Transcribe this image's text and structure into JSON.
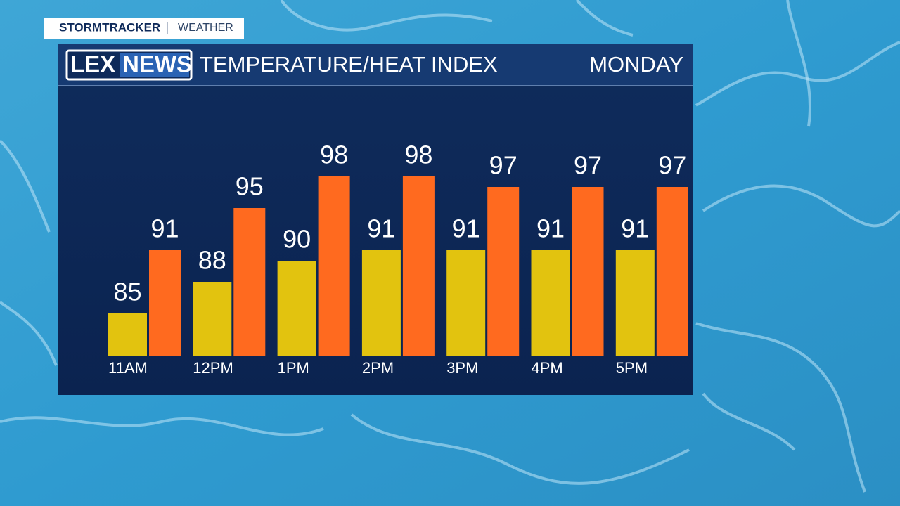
{
  "branding": {
    "station": "STORMTRACKER",
    "section": "WEATHER",
    "logo_left": "LEX",
    "logo_right": "NEWS"
  },
  "chart_data": {
    "type": "bar",
    "title": "TEMPERATURE/HEAT INDEX",
    "subtitle": "MONDAY",
    "categories": [
      "11AM",
      "12PM",
      "1PM",
      "2PM",
      "3PM",
      "4PM",
      "5PM"
    ],
    "series": [
      {
        "color": "#e2c30f",
        "values": [
          85,
          88,
          90,
          91,
          91,
          91,
          91
        ]
      },
      {
        "color": "#ff6a1f",
        "values": [
          91,
          95,
          98,
          98,
          97,
          97,
          97
        ]
      }
    ],
    "ylim": [
      81,
      100
    ]
  }
}
